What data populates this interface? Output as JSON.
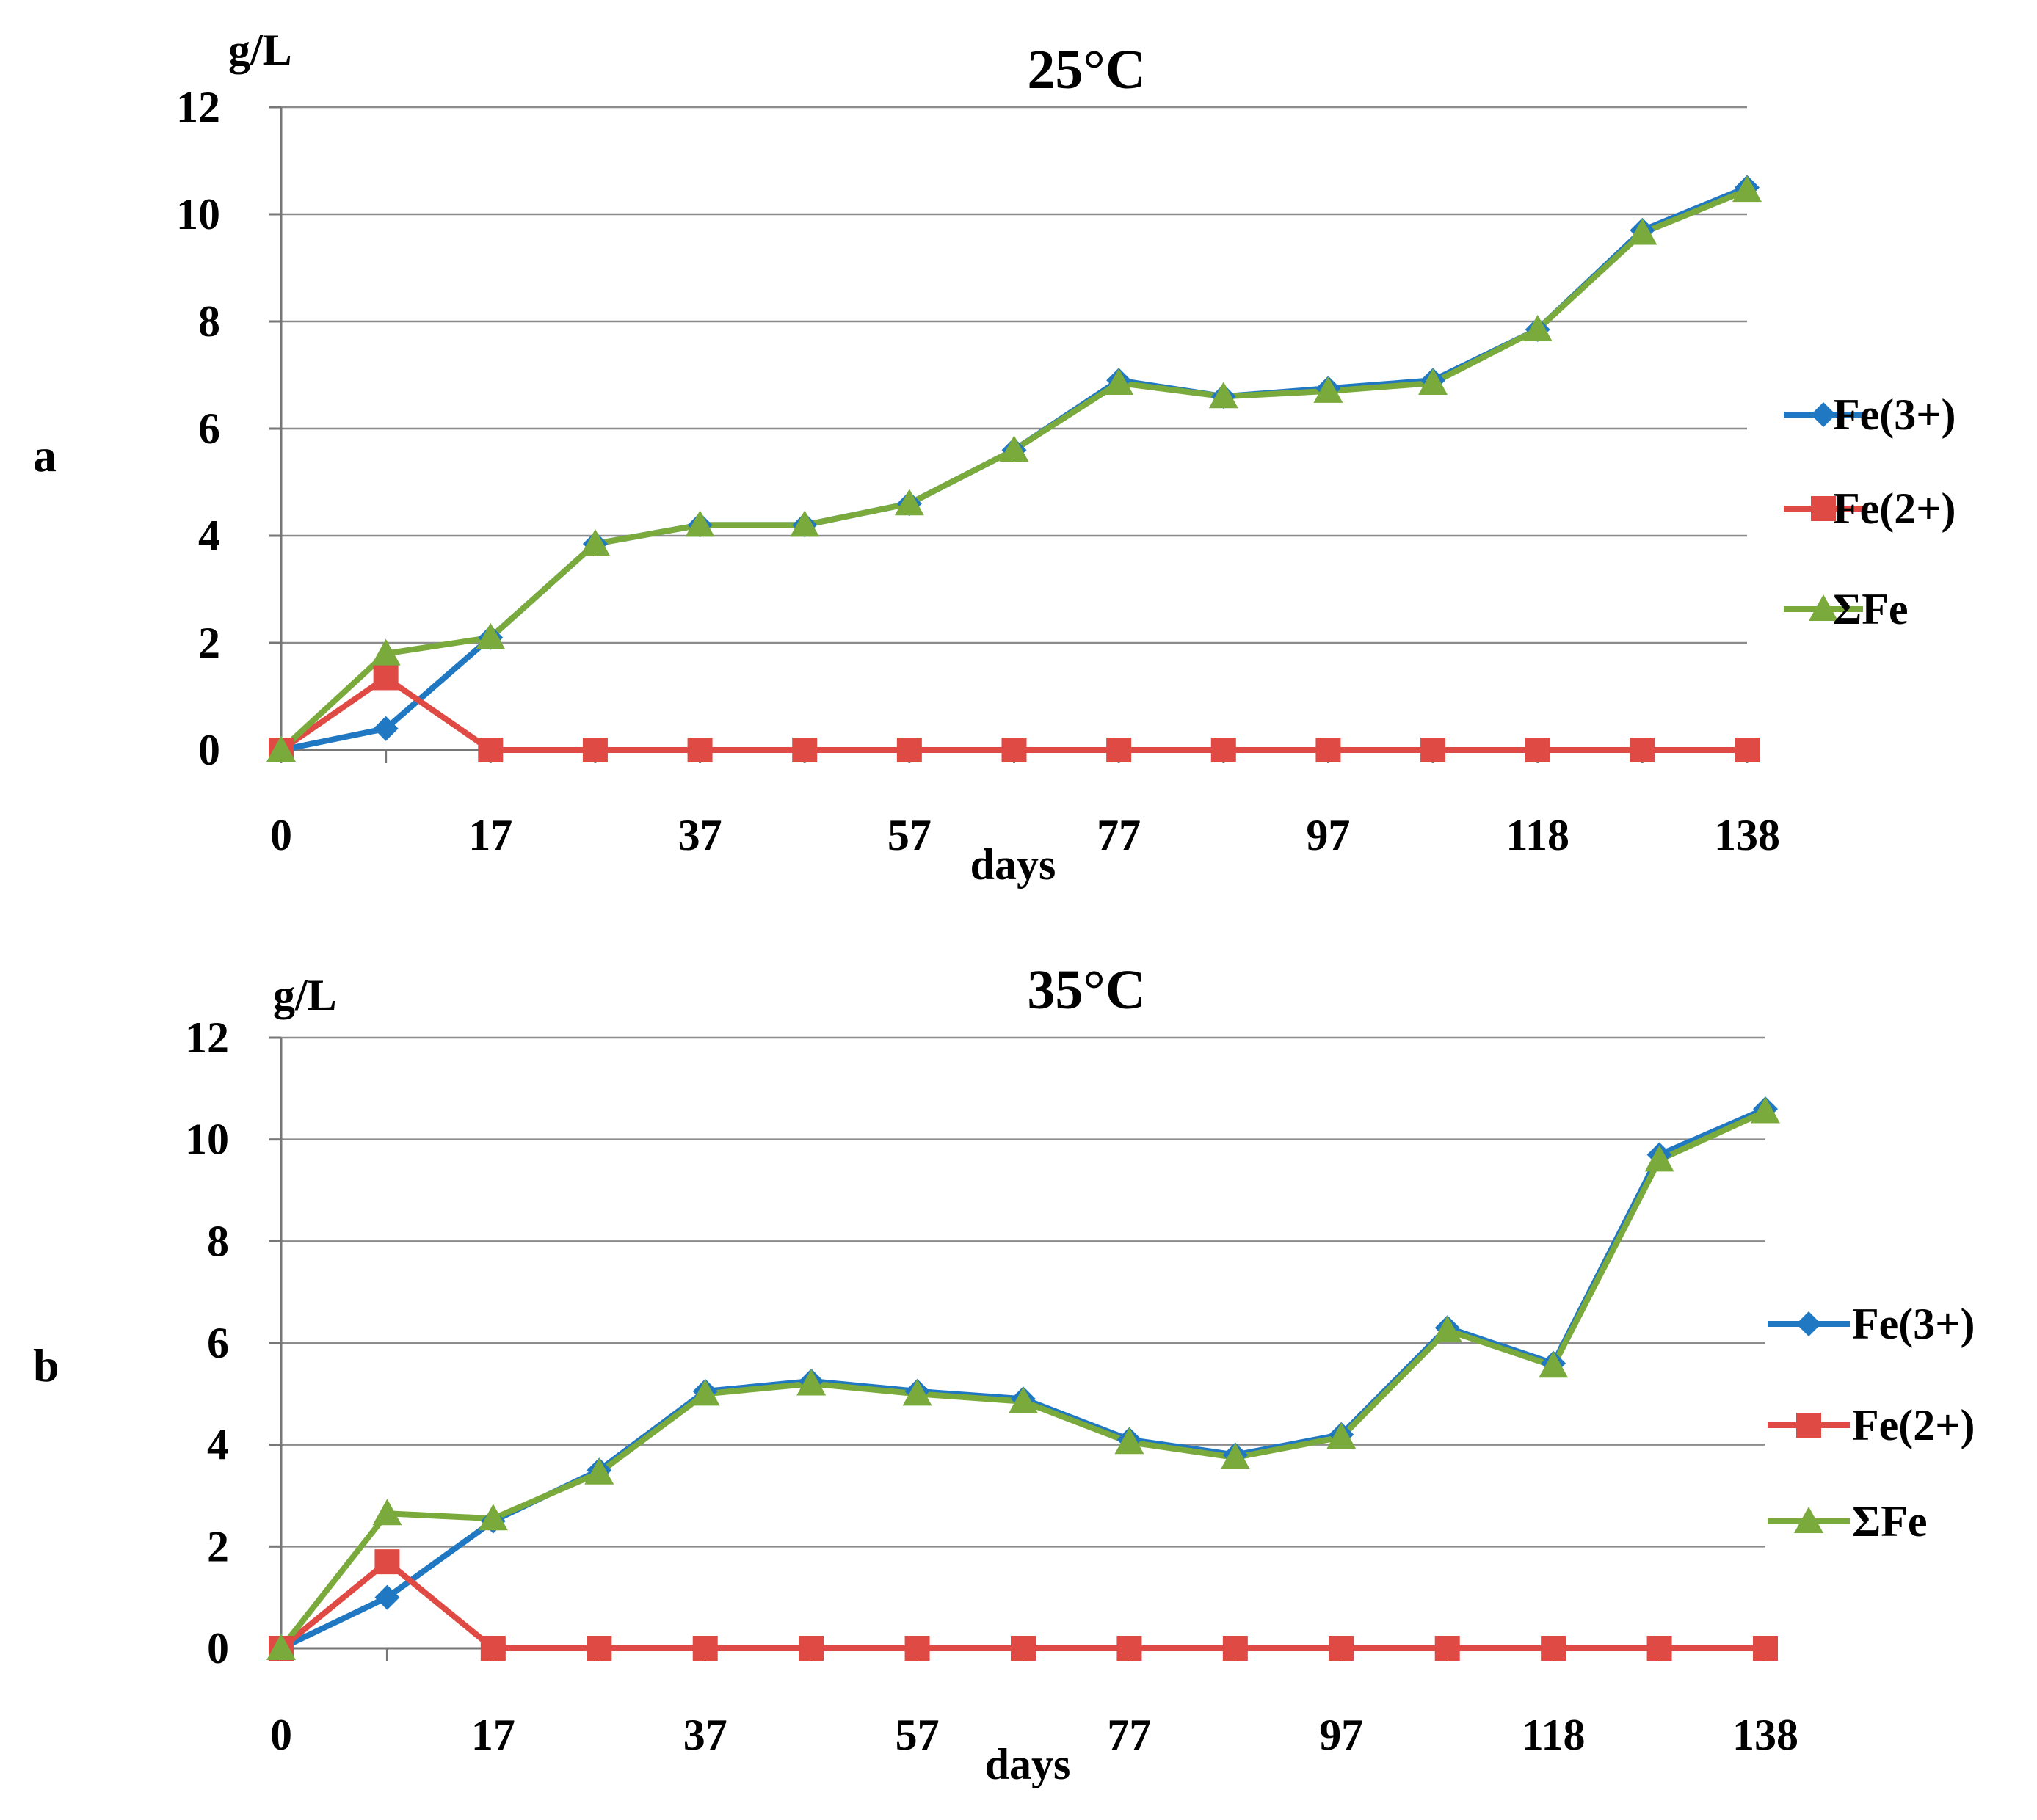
{
  "chart_data": [
    {
      "panel_label": "a",
      "type": "line",
      "title": "25°C",
      "xlabel": "days",
      "ylabel": "g/L",
      "ylim": [
        0,
        12
      ],
      "yticks": [
        "0",
        "2",
        "4",
        "6",
        "8",
        "10",
        "12"
      ],
      "xtick_labels": [
        "0",
        "17",
        "37",
        "57",
        "77",
        "97",
        "118",
        "138"
      ],
      "categories": [
        0,
        8,
        17,
        27,
        37,
        47,
        57,
        67,
        77,
        87,
        97,
        107,
        118,
        128,
        138
      ],
      "grid": true,
      "legend_position": "right",
      "series": [
        {
          "name": "Fe(3+)",
          "color": "#1f78c1",
          "marker": "diamond",
          "values": [
            0,
            0.4,
            2.1,
            3.85,
            4.2,
            4.2,
            4.6,
            5.6,
            6.9,
            6.6,
            6.75,
            6.9,
            7.85,
            9.7,
            10.5
          ]
        },
        {
          "name": "Fe(2+)",
          "color": "#e04a44",
          "marker": "square",
          "values": [
            0,
            1.35,
            0,
            0,
            0,
            0,
            0,
            0,
            0,
            0,
            0,
            0,
            0,
            0,
            0
          ]
        },
        {
          "name": "ΣFe",
          "color": "#7aaa3c",
          "marker": "triangle",
          "values": [
            0,
            1.8,
            2.1,
            3.85,
            4.2,
            4.2,
            4.6,
            5.6,
            6.85,
            6.6,
            6.7,
            6.85,
            7.85,
            9.65,
            10.45
          ]
        }
      ]
    },
    {
      "panel_label": "b",
      "type": "line",
      "title": "35°C",
      "xlabel": "days",
      "ylabel": "g/L",
      "ylim": [
        0,
        12
      ],
      "yticks": [
        "0",
        "2",
        "4",
        "6",
        "8",
        "10",
        "12"
      ],
      "xtick_labels": [
        "0",
        "17",
        "37",
        "57",
        "77",
        "97",
        "118",
        "138"
      ],
      "categories": [
        0,
        8,
        17,
        27,
        37,
        47,
        57,
        67,
        77,
        87,
        97,
        107,
        118,
        128,
        138
      ],
      "grid": true,
      "legend_position": "right",
      "series": [
        {
          "name": "Fe(3+)",
          "color": "#1f78c1",
          "marker": "diamond",
          "values": [
            0,
            1.0,
            2.5,
            3.5,
            5.05,
            5.25,
            5.05,
            4.9,
            4.1,
            3.8,
            4.2,
            6.3,
            5.6,
            9.7,
            10.6
          ]
        },
        {
          "name": "Fe(2+)",
          "color": "#e04a44",
          "marker": "square",
          "values": [
            0,
            1.7,
            0,
            0,
            0,
            0,
            0,
            0,
            0,
            0,
            0,
            0,
            0,
            0,
            0
          ]
        },
        {
          "name": "ΣFe",
          "color": "#7aaa3c",
          "marker": "triangle",
          "values": [
            0,
            2.65,
            2.55,
            3.45,
            5.0,
            5.2,
            5.0,
            4.85,
            4.05,
            3.75,
            4.15,
            6.25,
            5.55,
            9.6,
            10.55
          ]
        }
      ]
    }
  ]
}
